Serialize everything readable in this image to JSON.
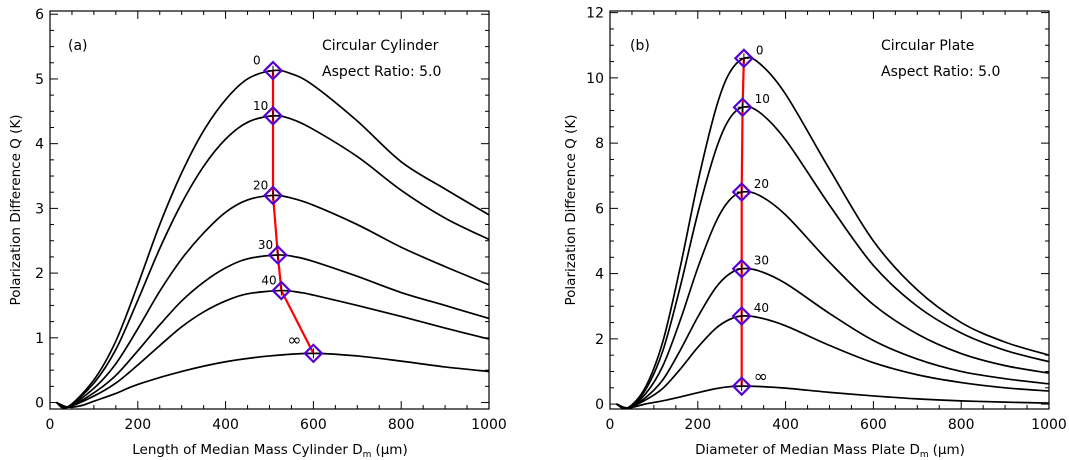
{
  "colors": {
    "curve": "#000000",
    "peak_line": "#ff0000",
    "marker": "#5500d4"
  },
  "chart_data": [
    {
      "type": "line",
      "panel_label": "(a)",
      "annotation_lines": [
        "Circular Cylinder",
        "Aspect Ratio: 5.0"
      ],
      "xlabel": "Length of Median Mass Cylinder D",
      "xlabel_sub": "m",
      "xlabel_unit": "(μm)",
      "ylabel": "Polarization Difference Q (K)",
      "xlim": [
        0,
        1000
      ],
      "ylim": [
        -0.1,
        6.05
      ],
      "xticks": [
        0,
        200,
        400,
        600,
        800,
        1000
      ],
      "yticks": [
        0,
        1,
        2,
        3,
        4,
        5,
        6
      ],
      "grid": false,
      "series": [
        {
          "name": "0",
          "peak": [
            508,
            5.13
          ],
          "curve": [
            [
              15,
              0
            ],
            [
              40,
              -0.07
            ],
            [
              100,
              0.35
            ],
            [
              150,
              0.95
            ],
            [
              200,
              1.82
            ],
            [
              250,
              2.75
            ],
            [
              300,
              3.55
            ],
            [
              350,
              4.2
            ],
            [
              400,
              4.68
            ],
            [
              450,
              5.0
            ],
            [
              508,
              5.13
            ],
            [
              550,
              5.08
            ],
            [
              600,
              4.9
            ],
            [
              700,
              4.35
            ],
            [
              800,
              3.72
            ],
            [
              900,
              3.3
            ],
            [
              1000,
              2.9
            ]
          ]
        },
        {
          "name": "10",
          "peak": [
            508,
            4.43
          ],
          "curve": [
            [
              15,
              0
            ],
            [
              40,
              -0.07
            ],
            [
              100,
              0.3
            ],
            [
              150,
              0.82
            ],
            [
              200,
              1.58
            ],
            [
              250,
              2.38
            ],
            [
              300,
              3.08
            ],
            [
              350,
              3.65
            ],
            [
              400,
              4.07
            ],
            [
              450,
              4.33
            ],
            [
              508,
              4.43
            ],
            [
              550,
              4.38
            ],
            [
              600,
              4.22
            ],
            [
              700,
              3.8
            ],
            [
              800,
              3.28
            ],
            [
              900,
              2.85
            ],
            [
              1000,
              2.52
            ]
          ]
        },
        {
          "name": "20",
          "peak": [
            508,
            3.2
          ],
          "curve": [
            [
              15,
              0
            ],
            [
              40,
              -0.07
            ],
            [
              100,
              0.22
            ],
            [
              150,
              0.6
            ],
            [
              200,
              1.14
            ],
            [
              250,
              1.72
            ],
            [
              300,
              2.22
            ],
            [
              350,
              2.62
            ],
            [
              400,
              2.94
            ],
            [
              450,
              3.13
            ],
            [
              508,
              3.2
            ],
            [
              550,
              3.16
            ],
            [
              600,
              3.05
            ],
            [
              700,
              2.75
            ],
            [
              800,
              2.4
            ],
            [
              900,
              2.1
            ],
            [
              1000,
              1.82
            ]
          ]
        },
        {
          "name": "30",
          "peak": [
            519,
            2.28
          ],
          "curve": [
            [
              15,
              0
            ],
            [
              40,
              -0.07
            ],
            [
              100,
              0.15
            ],
            [
              150,
              0.42
            ],
            [
              200,
              0.8
            ],
            [
              250,
              1.2
            ],
            [
              300,
              1.57
            ],
            [
              350,
              1.86
            ],
            [
              400,
              2.08
            ],
            [
              450,
              2.22
            ],
            [
              519,
              2.28
            ],
            [
              560,
              2.25
            ],
            [
              600,
              2.18
            ],
            [
              700,
              1.95
            ],
            [
              800,
              1.7
            ],
            [
              900,
              1.5
            ],
            [
              1000,
              1.3
            ]
          ]
        },
        {
          "name": "40",
          "peak": [
            527,
            1.73
          ],
          "curve": [
            [
              15,
              0
            ],
            [
              40,
              -0.07
            ],
            [
              100,
              0.1
            ],
            [
              150,
              0.3
            ],
            [
              200,
              0.58
            ],
            [
              250,
              0.88
            ],
            [
              300,
              1.17
            ],
            [
              350,
              1.4
            ],
            [
              400,
              1.57
            ],
            [
              450,
              1.68
            ],
            [
              527,
              1.73
            ],
            [
              570,
              1.7
            ],
            [
              600,
              1.66
            ],
            [
              700,
              1.5
            ],
            [
              800,
              1.33
            ],
            [
              900,
              1.15
            ],
            [
              1000,
              0.98
            ]
          ]
        },
        {
          "name": "∞",
          "peak": [
            600,
            0.76
          ],
          "curve": [
            [
              15,
              0
            ],
            [
              40,
              -0.07
            ],
            [
              70,
              -0.05
            ],
            [
              100,
              0.02
            ],
            [
              150,
              0.14
            ],
            [
              200,
              0.28
            ],
            [
              300,
              0.48
            ],
            [
              400,
              0.63
            ],
            [
              500,
              0.72
            ],
            [
              600,
              0.76
            ],
            [
              700,
              0.72
            ],
            [
              800,
              0.64
            ],
            [
              900,
              0.55
            ],
            [
              1000,
              0.48
            ]
          ]
        }
      ]
    },
    {
      "type": "line",
      "panel_label": "(b)",
      "annotation_lines": [
        "Circular Plate",
        "Aspect Ratio: 5.0"
      ],
      "xlabel": "Diameter of Median Mass Plate D",
      "xlabel_sub": "m",
      "xlabel_unit": "(μm)",
      "ylabel": "Polarization Difference Q (K)",
      "xlim": [
        0,
        1000
      ],
      "ylim": [
        -0.15,
        12.05
      ],
      "xticks": [
        0,
        200,
        400,
        600,
        800,
        1000
      ],
      "yticks": [
        0,
        2,
        4,
        6,
        8,
        10,
        12
      ],
      "grid": false,
      "series": [
        {
          "name": "0",
          "peak": [
            305,
            10.6
          ],
          "curve": [
            [
              15,
              0
            ],
            [
              40,
              -0.12
            ],
            [
              80,
              0.5
            ],
            [
              120,
              1.9
            ],
            [
              160,
              4.2
            ],
            [
              200,
              6.8
            ],
            [
              240,
              9.0
            ],
            [
              270,
              10.1
            ],
            [
              305,
              10.6
            ],
            [
              340,
              10.45
            ],
            [
              400,
              9.5
            ],
            [
              500,
              7.2
            ],
            [
              600,
              5.0
            ],
            [
              700,
              3.5
            ],
            [
              800,
              2.5
            ],
            [
              900,
              1.9
            ],
            [
              1000,
              1.5
            ]
          ]
        },
        {
          "name": "10",
          "peak": [
            302,
            9.1
          ],
          "curve": [
            [
              15,
              0
            ],
            [
              40,
              -0.12
            ],
            [
              80,
              0.42
            ],
            [
              120,
              1.62
            ],
            [
              160,
              3.6
            ],
            [
              200,
              5.85
            ],
            [
              240,
              7.75
            ],
            [
              270,
              8.7
            ],
            [
              302,
              9.1
            ],
            [
              340,
              8.95
            ],
            [
              400,
              8.1
            ],
            [
              500,
              6.1
            ],
            [
              600,
              4.25
            ],
            [
              700,
              3.0
            ],
            [
              800,
              2.18
            ],
            [
              900,
              1.65
            ],
            [
              1000,
              1.3
            ]
          ]
        },
        {
          "name": "20",
          "peak": [
            300,
            6.5
          ],
          "curve": [
            [
              15,
              0
            ],
            [
              40,
              -0.12
            ],
            [
              80,
              0.3
            ],
            [
              120,
              1.16
            ],
            [
              160,
              2.57
            ],
            [
              200,
              4.18
            ],
            [
              240,
              5.55
            ],
            [
              270,
              6.22
            ],
            [
              300,
              6.5
            ],
            [
              340,
              6.4
            ],
            [
              400,
              5.8
            ],
            [
              500,
              4.35
            ],
            [
              600,
              3.05
            ],
            [
              700,
              2.15
            ],
            [
              800,
              1.55
            ],
            [
              900,
              1.18
            ],
            [
              1000,
              0.95
            ]
          ]
        },
        {
          "name": "30",
          "peak": [
            300,
            4.15
          ],
          "curve": [
            [
              15,
              0
            ],
            [
              40,
              -0.12
            ],
            [
              80,
              0.19
            ],
            [
              120,
              0.74
            ],
            [
              160,
              1.65
            ],
            [
              200,
              2.67
            ],
            [
              240,
              3.55
            ],
            [
              270,
              3.97
            ],
            [
              300,
              4.15
            ],
            [
              340,
              4.08
            ],
            [
              400,
              3.7
            ],
            [
              500,
              2.78
            ],
            [
              600,
              1.95
            ],
            [
              700,
              1.38
            ],
            [
              800,
              1.0
            ],
            [
              900,
              0.78
            ],
            [
              1000,
              0.62
            ]
          ]
        },
        {
          "name": "40",
          "peak": [
            300,
            2.7
          ],
          "curve": [
            [
              15,
              0
            ],
            [
              40,
              -0.12
            ],
            [
              80,
              0.12
            ],
            [
              120,
              0.48
            ],
            [
              160,
              1.07
            ],
            [
              200,
              1.74
            ],
            [
              240,
              2.31
            ],
            [
              270,
              2.58
            ],
            [
              300,
              2.7
            ],
            [
              340,
              2.65
            ],
            [
              400,
              2.4
            ],
            [
              500,
              1.8
            ],
            [
              600,
              1.27
            ],
            [
              700,
              0.9
            ],
            [
              800,
              0.66
            ],
            [
              900,
              0.5
            ],
            [
              1000,
              0.4
            ]
          ]
        },
        {
          "name": "∞",
          "peak": [
            300,
            0.55
          ],
          "curve": [
            [
              15,
              0
            ],
            [
              40,
              -0.12
            ],
            [
              80,
              0.0
            ],
            [
              120,
              0.1
            ],
            [
              160,
              0.22
            ],
            [
              200,
              0.35
            ],
            [
              240,
              0.47
            ],
            [
              270,
              0.53
            ],
            [
              300,
              0.55
            ],
            [
              340,
              0.54
            ],
            [
              400,
              0.49
            ],
            [
              500,
              0.36
            ],
            [
              600,
              0.25
            ],
            [
              700,
              0.16
            ],
            [
              800,
              0.1
            ],
            [
              900,
              0.06
            ],
            [
              1000,
              0.03
            ]
          ]
        }
      ]
    }
  ]
}
